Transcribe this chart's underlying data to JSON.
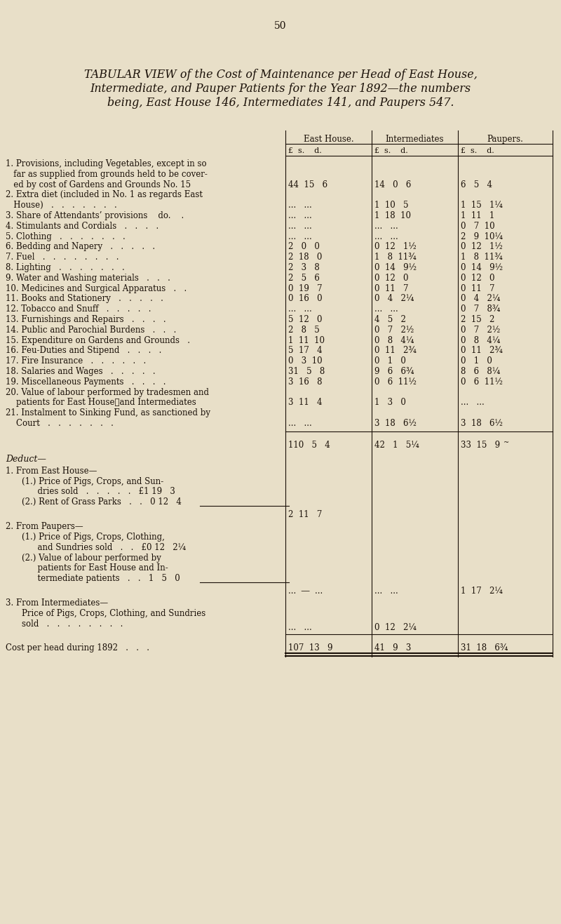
{
  "page_number": "50",
  "title_line1": "TABULAR VIEW of the Cost of Maintenance per Head of East House,",
  "title_line2": "Intermediate, and Pauper Patients for the Year 1892—the numbers",
  "title_line3": "being, East House 146, Intermediates 141, and Paupers 547.",
  "bg_color": "#e8dfc8",
  "text_color": "#1a1008",
  "col_header1": "East House.",
  "col_header2": "Intermediates",
  "col_header3": "Paupers.",
  "col_subheader": "£  s.    d.",
  "rows": [
    {
      "label1": "1. Provisions, including Vegetables, except in so",
      "label2": "   far as supplied from grounds held to be cover-",
      "label3": "   ed by cost of Gardens and Grounds No. 15",
      "eh": "44  15   6",
      "int": "14   0   6",
      "pau": "6   5   4",
      "nlines": 3,
      "val_line": 2
    },
    {
      "label1": "2. Extra diet (included in No. 1 as regards East",
      "label2": "   House)   .   .   .   .   .   .   .",
      "eh": "...   ...",
      "int": "1  10   5",
      "pau": "1  15   1¼",
      "nlines": 2,
      "val_line": 1
    },
    {
      "label1": "3. Share of Attendants’ provisions    do.    .",
      "eh": "...   ...",
      "int": "1  18  10",
      "pau": "1  11   1",
      "nlines": 1,
      "val_line": 0
    },
    {
      "label1": "4. Stimulants and Cordials   .   .   .   .",
      "eh": "...   ...",
      "int": "...   ...",
      "pau": "0   7  10",
      "nlines": 1,
      "val_line": 0
    },
    {
      "label1": "5. Clothing   .   .   .   .   .   .   .",
      "eh": "...   ...",
      "int": "...   ...",
      "pau": "2   9  10¼",
      "nlines": 1,
      "val_line": 0
    },
    {
      "label1": "6. Bedding and Napery   .   .   .   .   .",
      "eh": "2   0   0",
      "int": "0  12   1½",
      "pau": "0  12   1½",
      "nlines": 1,
      "val_line": 0
    },
    {
      "label1": "7. Fuel   .   .   .   .   .   .   .   .",
      "eh": "2  18   0",
      "int": "1   8  11¾",
      "pau": "1   8  11¾",
      "nlines": 1,
      "val_line": 0
    },
    {
      "label1": "8. Lighting   .   .   .   .   .   .   .",
      "eh": "2   3   8",
      "int": "0  14   9½",
      "pau": "0  14   9½",
      "nlines": 1,
      "val_line": 0
    },
    {
      "label1": "9. Water and Washing materials   .   .   .",
      "eh": "2   5   6",
      "int": "0  12   0",
      "pau": "0  12   0",
      "nlines": 1,
      "val_line": 0
    },
    {
      "label1": "10. Medicines and Surgical Apparatus   .   .",
      "eh": "0  19   7",
      "int": "0  11   7",
      "pau": "0  11   7",
      "nlines": 1,
      "val_line": 0
    },
    {
      "label1": "11. Books and Stationery   .   .   .   .   .",
      "eh": "0  16   0",
      "int": "0   4   2¼",
      "pau": "0   4   2¼",
      "nlines": 1,
      "val_line": 0
    },
    {
      "label1": "12. Tobacco and Snuff   .   .   .   .   .",
      "eh": "...   ...",
      "int": "...   ...",
      "pau": "0   7   8¾",
      "nlines": 1,
      "val_line": 0
    },
    {
      "label1": "13. Furnishings and Repairs   .   .   .   .",
      "eh": "5  12   0",
      "int": "4   5   2",
      "pau": "2  15   2",
      "nlines": 1,
      "val_line": 0
    },
    {
      "label1": "14. Public and Parochial Burdens   .   .   .",
      "eh": "2   8   5",
      "int": "0   7   2½",
      "pau": "0   7   2½",
      "nlines": 1,
      "val_line": 0
    },
    {
      "label1": "15. Expenditure on Gardens and Grounds   .",
      "eh": "1  11  10",
      "int": "0   8   4¼",
      "pau": "0   8   4¼",
      "nlines": 1,
      "val_line": 0
    },
    {
      "label1": "16. Feu-Duties and Stipend   .   .   .   .",
      "eh": "5  17   4",
      "int": "0  11   2¾",
      "pau": "0  11   2¾",
      "nlines": 1,
      "val_line": 0
    },
    {
      "label1": "17. Fire Insurance   .   .   .   .   .   .",
      "eh": "0   3  10",
      "int": "0   1   0",
      "pau": "0   1   0",
      "nlines": 1,
      "val_line": 0
    },
    {
      "label1": "18. Salaries and Wages   .   .   .   .   .",
      "eh": "31   5   8",
      "int": "9   6   6¾",
      "pau": "8   6   8¼",
      "nlines": 1,
      "val_line": 0
    },
    {
      "label1": "19. Miscellaneous Payments   .   .   .   .",
      "eh": "3  16   8",
      "int": "0   6  11½",
      "pau": "0   6  11½",
      "nlines": 1,
      "val_line": 0
    },
    {
      "label1": "20. Value of labour performed by tradesmen and",
      "label2": "    patients for East House⎯and Intermediates",
      "eh": "3  11   4",
      "int": "1   3   0",
      "pau": "...   ...",
      "nlines": 2,
      "val_line": 1
    },
    {
      "label1": "21. Instalment to Sinking Fund, as sanctioned by",
      "label2": "    Court   .   .   .   .   .   .   .",
      "eh": "...   ...",
      "int": "3  18   6½",
      "pau": "3  18   6½",
      "nlines": 2,
      "val_line": 1
    }
  ],
  "subtotal_eh": "110   5   4",
  "subtotal_int": "42   1   5¼",
  "subtotal_pau": "33  15   9",
  "deduct_label": "Deduct—",
  "deh_header": "1. From East House—",
  "deh_item1a": "    (1.) Price of Pigs, Crops, and Sun-",
  "deh_item1b": "          dries sold   .   .   .   .   .   £1 19   3",
  "deh_item2": "    (2.) Rent of Grass Parks   .   .   0 12   4",
  "deh_total": "2  11   7",
  "dpau_header": "2. From Paupers—",
  "dpau_item1a": "    (1.) Price of Pigs, Crops, Clothing,",
  "dpau_item1b": "          and Sundries sold   .   .   £0 12   2¼",
  "dpau_item2a": "    (2.) Value of labour performed by",
  "dpau_item2b": "          patients for East House and In-",
  "dpau_item2c": "          termediate patients   .   .   1   5   0",
  "dpau_dots_eh": "...   —   ...",
  "dpau_dots_int": "...   ...   ...",
  "dpau_total": "1  17   2¼",
  "dint_header": "3. From Intermediates—",
  "dint_item1": "    Price of Pigs, Crops, Clothing, and Sundries",
  "dint_item2": "    sold   .   .   .   .   .   .   .   .",
  "dint_dots": "...   ...",
  "dint_total": "0  12   2¼",
  "cost_label": "Cost per head during 1892   .   .   .",
  "cost_eh": "107  13   9",
  "cost_int": "41   9   3",
  "cost_pau": "31  18   6¾"
}
